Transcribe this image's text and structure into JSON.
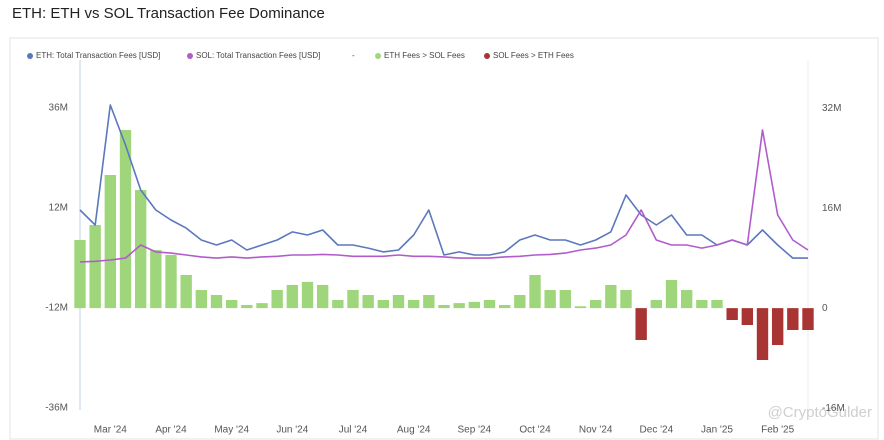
{
  "chart_data": {
    "type": "combo",
    "title": "ETH: ETH vs SOL Transaction Fee Dominance",
    "legend_separator": "-",
    "watermark": "@CryptoGulder",
    "categories": [
      null,
      null,
      "Mar '24",
      null,
      null,
      null,
      "Apr '24",
      null,
      null,
      null,
      "May '24",
      null,
      null,
      null,
      "Jun '24",
      null,
      null,
      null,
      "Jul '24",
      null,
      null,
      null,
      "Aug '24",
      null,
      null,
      null,
      "Sep '24",
      null,
      null,
      null,
      "Oct '24",
      null,
      null,
      null,
      "Nov '24",
      null,
      null,
      null,
      "Dec '24",
      null,
      null,
      null,
      "Jan '25",
      null,
      null,
      null,
      "Feb '25",
      null,
      null
    ],
    "ylim": [
      -36500000,
      47500000
    ],
    "yticks": [
      {
        "value": -36000000,
        "label": "-36M"
      },
      {
        "value": -12000000,
        "label": "-12M"
      },
      {
        "value": 12000000,
        "label": "12M"
      },
      {
        "value": 36000000,
        "label": "36M"
      }
    ],
    "y2lim": [
      -16300000,
      39700000
    ],
    "y2ticks": [
      {
        "value": -16000000,
        "label": "-16M"
      },
      0,
      {
        "value": 16000000,
        "label": "16M"
      },
      {
        "value": 32000000,
        "label": "32M"
      }
    ],
    "series": [
      {
        "name": "ETH: Total Transaction Fees [USD]",
        "color": "#5b78bd",
        "kind": "line",
        "axis": "y2",
        "values": [
          15700000,
          13300000,
          32500000,
          26100000,
          18900000,
          15700000,
          14100000,
          12800000,
          10900000,
          10100000,
          10900000,
          9300000,
          10100000,
          10900000,
          12200000,
          11700000,
          12500000,
          10100000,
          10100000,
          9600000,
          9000000,
          9300000,
          11700000,
          15700000,
          8500000,
          9000000,
          8500000,
          8500000,
          9000000,
          10900000,
          11700000,
          10900000,
          10900000,
          10100000,
          10900000,
          12200000,
          18100000,
          14900000,
          13300000,
          14900000,
          11700000,
          11700000,
          10100000,
          10900000,
          10100000,
          12500000,
          10100000,
          8000000,
          8000000
        ]
      },
      {
        "name": "SOL: Total Transaction Fees [USD]",
        "color": "#b25ccb",
        "kind": "line",
        "axis": "y2",
        "values": [
          7400000,
          7500000,
          7700000,
          8000000,
          10100000,
          9000000,
          8800000,
          8500000,
          8200000,
          8000000,
          8200000,
          8000000,
          8200000,
          8300000,
          8500000,
          8500000,
          8600000,
          8500000,
          8300000,
          8300000,
          8300000,
          8500000,
          8300000,
          8300000,
          8200000,
          8000000,
          8000000,
          8000000,
          8200000,
          8300000,
          8500000,
          8600000,
          8800000,
          9300000,
          9600000,
          10100000,
          11700000,
          15700000,
          10900000,
          10100000,
          10100000,
          9600000,
          10100000,
          10900000,
          10100000,
          28500000,
          14900000,
          10900000,
          9300000
        ]
      },
      {
        "name": "ETH Fees > SOL Fees",
        "color": "#9fd67c",
        "kind": "bar",
        "axis": "y2",
        "values": [
          10900000,
          13300000,
          21300000,
          28500000,
          18900000,
          9300000,
          8500000,
          5300000,
          2900000,
          2100000,
          1300000,
          500000,
          800000,
          2900000,
          3700000,
          4200000,
          3700000,
          1300000,
          2900000,
          2100000,
          1300000,
          2100000,
          1300000,
          2100000,
          500000,
          800000,
          1000000,
          1300000,
          500000,
          2100000,
          5300000,
          2900000,
          2900000,
          300000,
          1300000,
          3700000,
          2900000,
          null,
          1300000,
          4500000,
          2900000,
          1300000,
          1300000,
          null,
          null,
          null,
          null,
          null,
          null
        ]
      },
      {
        "name": "SOL Fees > ETH Fees",
        "color": "#a83434",
        "kind": "bar",
        "axis": "y2",
        "values": [
          null,
          null,
          null,
          null,
          null,
          null,
          null,
          null,
          null,
          null,
          null,
          null,
          null,
          null,
          null,
          null,
          null,
          null,
          null,
          null,
          null,
          null,
          null,
          null,
          null,
          null,
          null,
          null,
          null,
          null,
          null,
          null,
          null,
          null,
          null,
          null,
          null,
          -5100000,
          null,
          null,
          null,
          null,
          null,
          -1900000,
          -2700000,
          -8300000,
          -5900000,
          -3500000,
          -3500000
        ]
      }
    ]
  }
}
